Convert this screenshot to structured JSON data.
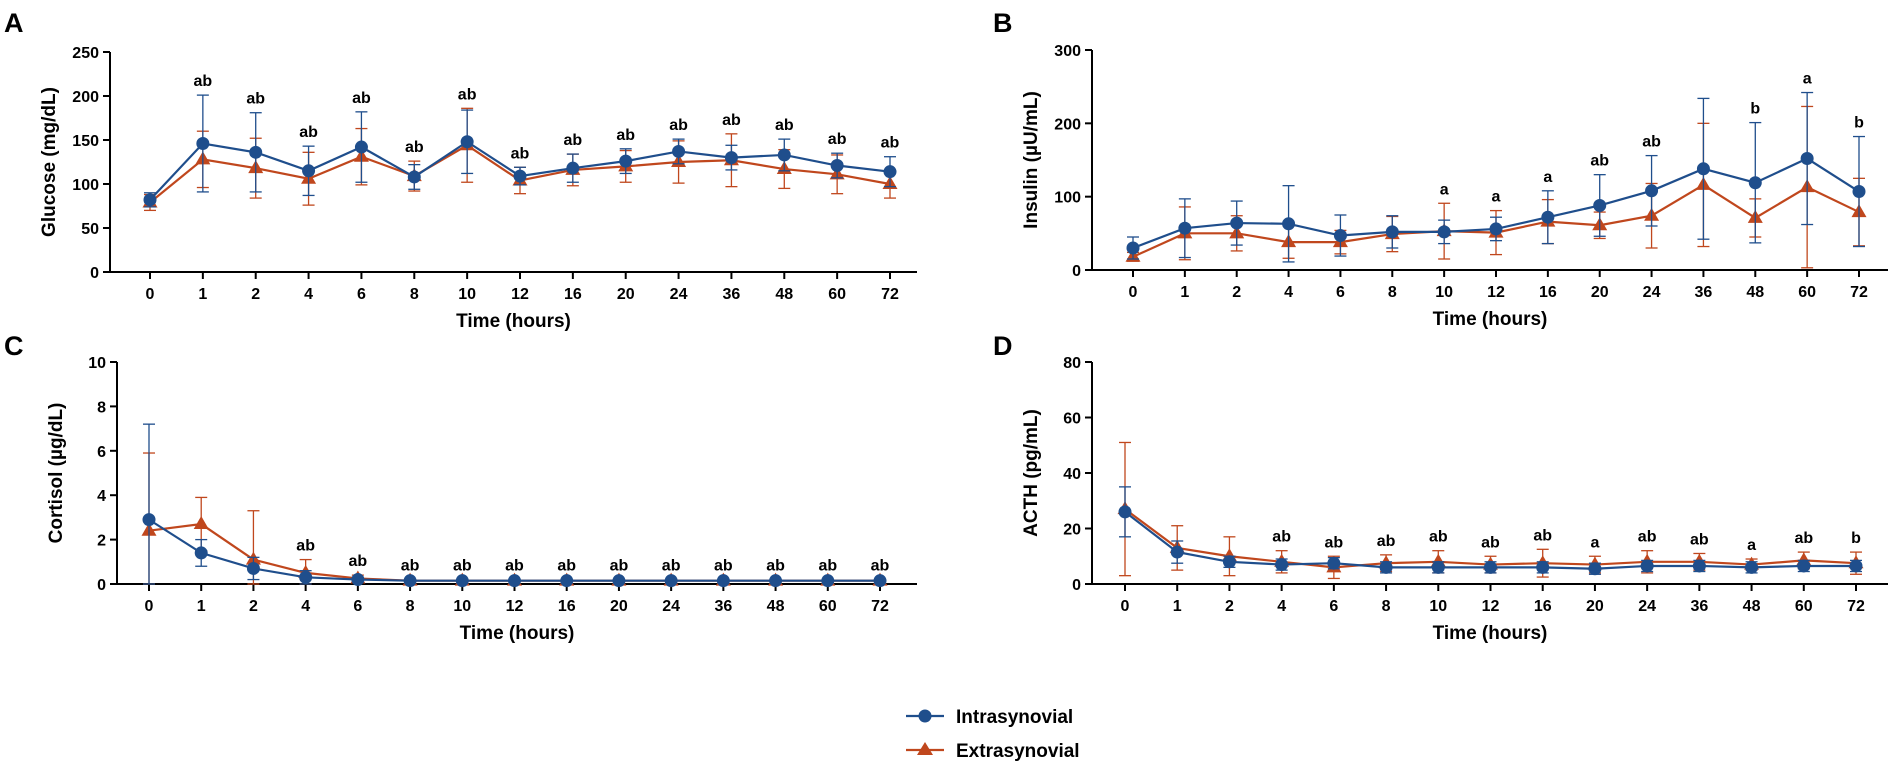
{
  "chart_data": [
    {
      "type": "line",
      "panel": "A",
      "title": "",
      "xlabel": "Time (hours)",
      "ylabel": "Glucose (mg/dL)",
      "categories": [
        "0",
        "1",
        "2",
        "4",
        "6",
        "8",
        "10",
        "12",
        "16",
        "20",
        "24",
        "36",
        "48",
        "60",
        "72"
      ],
      "ylim": [
        0,
        250
      ],
      "yticks": [
        0,
        50,
        100,
        150,
        200,
        250
      ],
      "series": [
        {
          "name": "Intrasynovial",
          "values": [
            82,
            146,
            136,
            115,
            142,
            108,
            148,
            109,
            118,
            126,
            137,
            130,
            133,
            121,
            114
          ],
          "err": [
            8,
            55,
            45,
            28,
            40,
            14,
            36,
            10,
            16,
            14,
            14,
            14,
            18,
            14,
            17
          ]
        },
        {
          "name": "Extrasynovial",
          "values": [
            79,
            128,
            118,
            106,
            131,
            109,
            144,
            104,
            116,
            120,
            125,
            127,
            117,
            111,
            100
          ],
          "err": [
            9,
            32,
            34,
            30,
            32,
            17,
            42,
            15,
            18,
            18,
            24,
            30,
            22,
            22,
            16
          ]
        }
      ],
      "annotations": [
        "",
        "ab",
        "ab",
        "ab",
        "ab",
        "ab",
        "ab",
        "ab",
        "ab",
        "ab",
        "ab",
        "ab",
        "ab",
        "ab",
        "ab"
      ],
      "grid": false
    },
    {
      "type": "line",
      "panel": "B",
      "title": "",
      "xlabel": "Time (hours)",
      "ylabel": "Insulin (µU/mL)",
      "categories": [
        "0",
        "1",
        "2",
        "4",
        "6",
        "8",
        "10",
        "12",
        "16",
        "20",
        "24",
        "36",
        "48",
        "60",
        "72"
      ],
      "ylim": [
        0,
        300
      ],
      "yticks": [
        0,
        100,
        200,
        300
      ],
      "series": [
        {
          "name": "Intrasynovial",
          "values": [
            30,
            57,
            64,
            63,
            47,
            52,
            52,
            56,
            72,
            88,
            108,
            138,
            119,
            152,
            107
          ],
          "err": [
            15,
            40,
            30,
            52,
            28,
            22,
            16,
            16,
            36,
            42,
            48,
            96,
            82,
            90,
            75
          ]
        },
        {
          "name": "Extrasynovial",
          "values": [
            18,
            50,
            50,
            38,
            38,
            49,
            53,
            51,
            66,
            61,
            74,
            116,
            71,
            113,
            79
          ],
          "err": [
            6,
            36,
            24,
            22,
            16,
            24,
            38,
            30,
            30,
            18,
            44,
            84,
            26,
            110,
            46
          ]
        }
      ],
      "annotations": [
        "",
        "",
        "",
        "",
        "",
        "",
        "a",
        "a",
        "a",
        "ab",
        "ab",
        "",
        "b",
        "a",
        "b"
      ],
      "grid": false
    },
    {
      "type": "line",
      "panel": "C",
      "title": "",
      "xlabel": "Time (hours)",
      "ylabel": "Cortisol (µg/dL)",
      "categories": [
        "0",
        "1",
        "2",
        "4",
        "6",
        "8",
        "10",
        "12",
        "16",
        "20",
        "24",
        "36",
        "48",
        "60",
        "72"
      ],
      "ylim": [
        0,
        10
      ],
      "yticks": [
        0,
        2,
        4,
        6,
        8,
        10
      ],
      "series": [
        {
          "name": "Intrasynovial",
          "values": [
            2.9,
            1.4,
            0.7,
            0.3,
            0.2,
            0.15,
            0.15,
            0.15,
            0.15,
            0.15,
            0.15,
            0.15,
            0.15,
            0.15,
            0.15
          ],
          "err": [
            4.3,
            0.6,
            0.5,
            0.3,
            0.1,
            0.05,
            0.05,
            0.05,
            0.05,
            0.05,
            0.05,
            0.05,
            0.05,
            0.05,
            0.05
          ]
        },
        {
          "name": "Extrasynovial",
          "values": [
            2.4,
            2.7,
            1.1,
            0.5,
            0.25,
            0.15,
            0.15,
            0.15,
            0.15,
            0.15,
            0.15,
            0.15,
            0.15,
            0.15,
            0.15
          ],
          "err": [
            3.5,
            1.2,
            2.2,
            0.6,
            0.15,
            0.05,
            0.05,
            0.05,
            0.05,
            0.05,
            0.05,
            0.05,
            0.05,
            0.05,
            0.05
          ]
        }
      ],
      "annotations": [
        "",
        "",
        "",
        "ab",
        "ab",
        "ab",
        "ab",
        "ab",
        "ab",
        "ab",
        "ab",
        "ab",
        "ab",
        "ab",
        "ab"
      ],
      "grid": false
    },
    {
      "type": "line",
      "panel": "D",
      "title": "",
      "xlabel": "Time (hours)",
      "ylabel": "ACTH (pg/mL)",
      "categories": [
        "0",
        "1",
        "2",
        "4",
        "6",
        "8",
        "10",
        "12",
        "16",
        "20",
        "24",
        "36",
        "48",
        "60",
        "72"
      ],
      "ylim": [
        0,
        80
      ],
      "yticks": [
        0,
        20,
        40,
        60,
        80
      ],
      "series": [
        {
          "name": "Intrasynovial",
          "values": [
            26,
            11.5,
            8,
            7,
            7.5,
            6,
            6,
            6,
            6,
            5.5,
            6.5,
            6.5,
            6,
            6.5,
            6.5
          ],
          "err": [
            9,
            4,
            2,
            2,
            2,
            2,
            2,
            2,
            2,
            2,
            2,
            2,
            2,
            2,
            2
          ]
        },
        {
          "name": "Extrasynovial",
          "values": [
            27,
            13,
            10,
            8,
            6,
            7.5,
            8,
            7,
            7.5,
            7,
            8,
            8,
            7,
            8.5,
            7.5
          ],
          "err": [
            24,
            8,
            7,
            4,
            4,
            3,
            4,
            3,
            5,
            3,
            4,
            3,
            2,
            3,
            4
          ]
        }
      ],
      "annotations": [
        "",
        "",
        "",
        "ab",
        "ab",
        "ab",
        "ab",
        "ab",
        "ab",
        "a",
        "ab",
        "ab",
        "a",
        "ab",
        "b"
      ],
      "grid": false
    }
  ],
  "legend": [
    {
      "name": "Intrasynovial",
      "marker": "circle",
      "color": "#1f4e8c"
    },
    {
      "name": "Extrasynovial",
      "marker": "triangle",
      "color": "#c0471d"
    }
  ],
  "colors": {
    "intrasynovial": "#1f4e8c",
    "extrasynovial": "#c0471d",
    "axis": "#000000"
  }
}
